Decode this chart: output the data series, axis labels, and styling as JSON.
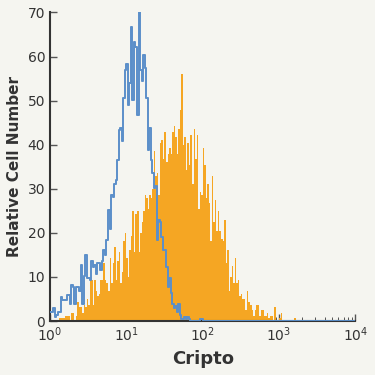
{
  "title": "",
  "xlabel": "Cripto",
  "ylabel": "Relative Cell Number",
  "xlim_log": [
    1.0,
    4.0
  ],
  "ylim": [
    0,
    70
  ],
  "yticks": [
    0,
    10,
    20,
    30,
    40,
    50,
    60,
    70
  ],
  "xticks_log": [
    0,
    1,
    2,
    3,
    4
  ],
  "blue_color": "#5b8fc9",
  "orange_color": "#f5a623",
  "orange_fill": "#f5a623",
  "bg_color": "#f5f5f0",
  "figsize": [
    3.75,
    3.75
  ],
  "dpi": 100
}
